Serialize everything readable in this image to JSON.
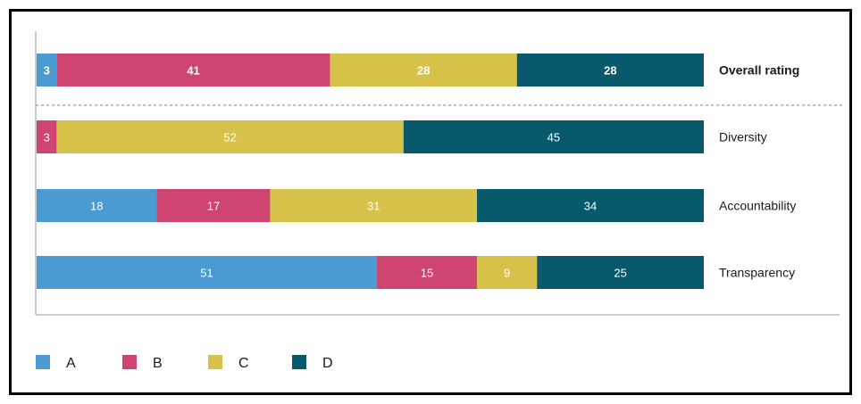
{
  "chart_data": {
    "type": "bar",
    "orientation": "horizontal",
    "stacked": true,
    "percent": true,
    "categories": [
      "Overall rating",
      "Diversity",
      "Accountability",
      "Transparency"
    ],
    "series": [
      {
        "name": "A",
        "color": "#4a9bd1",
        "values": [
          3,
          0,
          18,
          51
        ]
      },
      {
        "name": "B",
        "color": "#cf4470",
        "values": [
          41,
          3,
          17,
          15
        ]
      },
      {
        "name": "C",
        "color": "#d6c149",
        "values": [
          28,
          52,
          31,
          9
        ]
      },
      {
        "name": "D",
        "color": "#07596b",
        "values": [
          28,
          45,
          34,
          25
        ]
      }
    ],
    "xlim": [
      0,
      100
    ],
    "grid": false,
    "legend_position": "bottom-left",
    "emphasized_category": "Overall rating",
    "separator_after_category": "Overall rating"
  }
}
